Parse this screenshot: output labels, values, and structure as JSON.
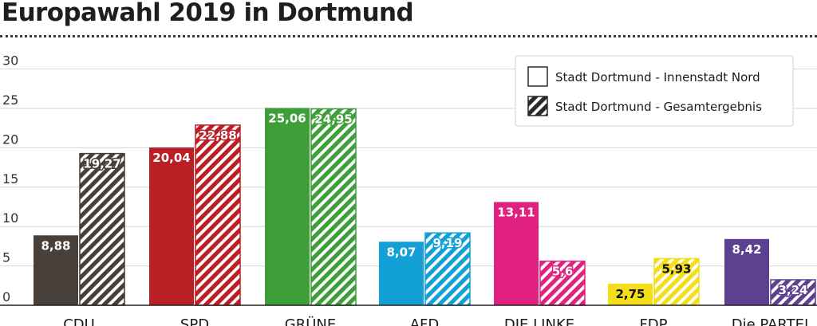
{
  "title": "Europawahl 2019 in Dortmund",
  "chart_data": {
    "type": "bar",
    "title": "Europawahl 2019 in Dortmund",
    "xlabel": "",
    "ylabel": "",
    "ylim": [
      0,
      30
    ],
    "yticks": [
      0,
      5,
      10,
      15,
      20,
      25,
      30
    ],
    "grid": true,
    "legend_position": "top-right",
    "categories": [
      "CDU",
      "SPD",
      "GRÜNE",
      "AFD",
      "DIE LINKE",
      "FDP",
      "Die PARTEI"
    ],
    "category_colors": [
      "#463f3a",
      "#b91f25",
      "#3e9e3a",
      "#12a0d6",
      "#e0217f",
      "#f4de1a",
      "#5d4090"
    ],
    "series": [
      {
        "name": "Stadt Dortmund - Innenstadt Nord",
        "pattern": "solid",
        "values": [
          8.88,
          20.04,
          25.06,
          8.07,
          13.11,
          2.75,
          8.42
        ],
        "labels": [
          "8,88",
          "20,04",
          "25,06",
          "8,07",
          "13,11",
          "2,75",
          "8,42"
        ]
      },
      {
        "name": "Stadt Dortmund - Gesamtergebnis",
        "pattern": "hatched",
        "values": [
          19.27,
          22.88,
          24.95,
          9.19,
          5.6,
          5.93,
          3.24
        ],
        "labels": [
          "19,27",
          "22,88",
          "24,95",
          "9,19",
          "5,6",
          "5,93",
          "3,24"
        ]
      }
    ]
  }
}
